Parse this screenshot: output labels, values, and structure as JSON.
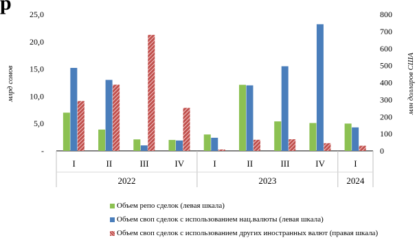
{
  "heading_fragment": "р",
  "chart_data": {
    "type": "bar",
    "left_axis": {
      "label": "млрд сомов",
      "ticks": [
        "-",
        "5,0",
        "10,0",
        "15,0",
        "20,0",
        "25,0"
      ],
      "ylim": [
        0,
        25
      ]
    },
    "right_axis": {
      "label": "млн долларов США",
      "ticks": [
        "0",
        "100",
        "200",
        "300",
        "400",
        "500",
        "600",
        "700",
        "800"
      ],
      "ylim": [
        0,
        800
      ]
    },
    "groups": [
      {
        "year": "2022",
        "quarters": [
          "I",
          "II",
          "III",
          "IV"
        ]
      },
      {
        "year": "2023",
        "quarters": [
          "I",
          "II",
          "III",
          "IV"
        ]
      },
      {
        "year": "2024",
        "quarters": [
          "I"
        ]
      }
    ],
    "series": [
      {
        "name": "Объем репо сделок (левая шкала)",
        "axis": "left",
        "color": "#8cc152",
        "values": [
          7.0,
          3.9,
          2.1,
          2.0,
          3.0,
          12.1,
          5.4,
          5.1,
          5.0
        ]
      },
      {
        "name": "Объем своп сделок с использованием нац.валюты (левая шкала)",
        "axis": "left",
        "color": "#4a7ebb",
        "values": [
          15.2,
          13.0,
          1.0,
          1.9,
          2.4,
          12.0,
          15.5,
          23.2,
          4.3
        ]
      },
      {
        "name": "Объем своп сделок с использованием других иностранных валют (правая шкала)",
        "axis": "right",
        "color": "#c0504d",
        "values": [
          292,
          388,
          680,
          252,
          8,
          65,
          68,
          45,
          30
        ]
      }
    ]
  }
}
